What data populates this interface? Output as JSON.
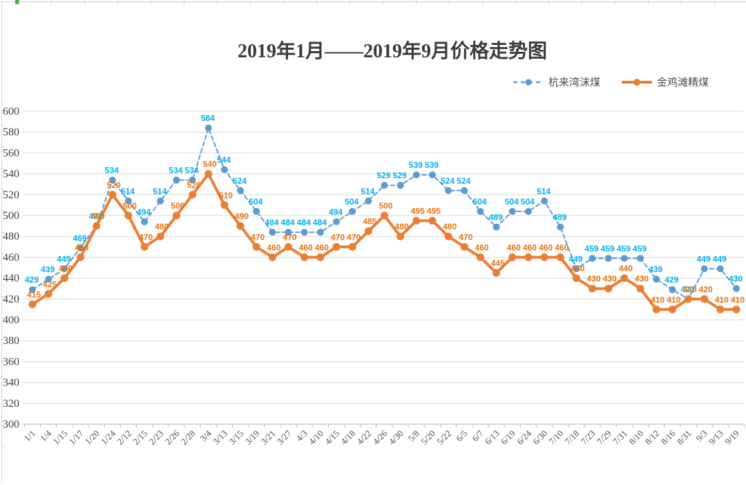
{
  "title": {
    "text": "2019年1月——2019年9月价格走势图"
  },
  "legend": {
    "items": [
      {
        "label": "杭来湾沫煤",
        "color": "#5B9BD5",
        "line_style": "dashed"
      },
      {
        "label": "金鸡滩精煤",
        "color": "#ED7D31",
        "line_style": "solid"
      }
    ]
  },
  "chart_data": {
    "type": "line",
    "title": "2019年1月——2019年9月价格走势图",
    "categories": [
      "1/1",
      "1/4",
      "1/15",
      "1/17",
      "1/20",
      "1/24",
      "2/12",
      "2/15",
      "2/23",
      "2/26",
      "2/28",
      "3/4",
      "3/13",
      "3/15",
      "3/19",
      "3/21",
      "3/27",
      "4/3",
      "4/10",
      "4/15",
      "4/18",
      "4/22",
      "4/26",
      "4/30",
      "5/8",
      "5/20",
      "5/22",
      "6/5",
      "6/7",
      "6/13",
      "6/19",
      "6/24",
      "6/30",
      "7/10",
      "7/18",
      "7/23",
      "7/29",
      "7/31",
      "8/10",
      "8/12",
      "8/16",
      "8/31",
      "9/3",
      "9/13",
      "9/19"
    ],
    "series": [
      {
        "name": "杭来湾沫煤",
        "color": "#5B9BD5",
        "label_color": "#00B0F0",
        "style": "dashed",
        "values": [
          429,
          439,
          449,
          469,
          490,
          534,
          514,
          494,
          514,
          534,
          534,
          584,
          544,
          524,
          504,
          484,
          484,
          484,
          484,
          494,
          504,
          514,
          529,
          529,
          539,
          539,
          524,
          524,
          504,
          489,
          504,
          504,
          514,
          489,
          449,
          459,
          459,
          459,
          459,
          439,
          429,
          420,
          449,
          449,
          430
        ]
      },
      {
        "name": "金鸡滩精煤",
        "color": "#ED7D31",
        "label_color": "#E8730C",
        "style": "solid",
        "values": [
          415,
          425,
          440,
          460,
          490,
          520,
          500,
          470,
          480,
          500,
          520,
          540,
          510,
          490,
          470,
          460,
          470,
          460,
          460,
          470,
          470,
          485,
          500,
          480,
          495,
          495,
          480,
          470,
          460,
          445,
          460,
          460,
          460,
          460,
          440,
          430,
          430,
          440,
          430,
          410,
          410,
          420,
          420,
          410,
          410
        ]
      }
    ],
    "ylim": [
      300,
      600
    ],
    "ytick_step": 20,
    "xlabel": "",
    "ylabel": "",
    "grid": true,
    "data_labels": true,
    "legend_position": "top-right",
    "x_label_rotation": -45,
    "colors": {
      "grid": "#D9D9D9",
      "axis": "#BFBFBF",
      "tick_text": "#404040"
    }
  }
}
